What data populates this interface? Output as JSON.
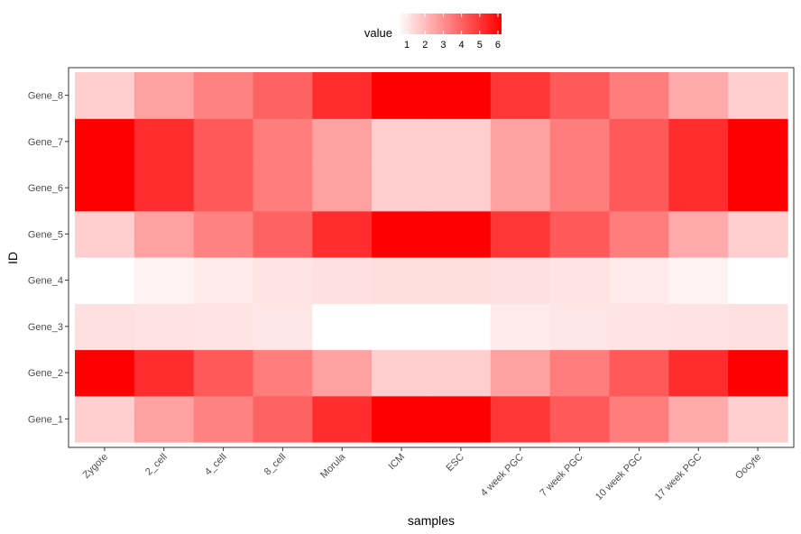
{
  "chart_data": {
    "type": "heatmap",
    "xlabel": "samples",
    "ylabel": "ID",
    "x_categories": [
      "Zygote",
      "2_cell",
      "4_cell",
      "8_cell",
      "Morula",
      "ICM",
      "ESC",
      "4 week PGC",
      "7 week PGC",
      "10 week PGC",
      "17 week PGC",
      "Oocyte"
    ],
    "y_categories": [
      "Gene_1",
      "Gene_2",
      "Gene_3",
      "Gene_4",
      "Gene_5",
      "Gene_6",
      "Gene_7",
      "Gene_8"
    ],
    "values": [
      [
        1.6,
        2.6,
        3.3,
        4.0,
        5.2,
        6.2,
        6.2,
        5.0,
        4.2,
        3.4,
        2.4,
        1.6
      ],
      [
        6.2,
        5.2,
        4.2,
        3.4,
        2.6,
        1.6,
        1.6,
        2.6,
        3.4,
        4.2,
        5.2,
        6.2
      ],
      [
        1.2,
        1.15,
        1.1,
        1.05,
        0.5,
        0.5,
        0.5,
        0.95,
        1.05,
        1.1,
        1.15,
        1.2
      ],
      [
        0.5,
        0.8,
        1.0,
        1.1,
        1.2,
        1.25,
        1.25,
        1.2,
        1.1,
        1.0,
        0.8,
        0.5
      ],
      [
        1.6,
        2.6,
        3.3,
        4.0,
        5.2,
        6.2,
        6.2,
        5.0,
        4.2,
        3.4,
        2.4,
        1.6
      ],
      [
        6.2,
        5.2,
        4.2,
        3.4,
        2.6,
        1.6,
        1.6,
        2.6,
        3.4,
        4.2,
        5.2,
        6.2
      ],
      [
        6.2,
        5.2,
        4.2,
        3.4,
        2.6,
        1.6,
        1.6,
        2.6,
        3.4,
        4.2,
        5.2,
        6.2
      ],
      [
        1.6,
        2.6,
        3.3,
        4.0,
        5.2,
        6.2,
        6.2,
        5.0,
        4.2,
        3.4,
        2.4,
        1.6
      ]
    ],
    "color_scale": {
      "low": "#ffffff",
      "high": "#ff0000",
      "min": 0.5,
      "max": 6.2
    },
    "legend": {
      "title": "value",
      "ticks": [
        1,
        2,
        3,
        4,
        5,
        6
      ],
      "placement": "top"
    },
    "grid": false
  }
}
